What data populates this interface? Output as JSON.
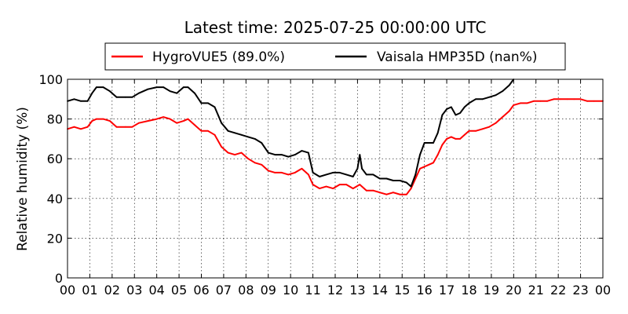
{
  "chart_data": {
    "type": "line",
    "title": "Latest time: 2025-07-25 00:00:00 UTC",
    "xlabel": "",
    "ylabel": "Relative humidity (%)",
    "xlim": [
      0,
      24
    ],
    "ylim": [
      0,
      100
    ],
    "x_ticks": [
      0,
      1,
      2,
      3,
      4,
      5,
      6,
      7,
      8,
      9,
      10,
      11,
      12,
      13,
      14,
      15,
      16,
      17,
      18,
      19,
      20,
      21,
      22,
      23,
      24
    ],
    "x_tick_labels": [
      "00",
      "01",
      "02",
      "03",
      "04",
      "05",
      "06",
      "07",
      "08",
      "09",
      "10",
      "11",
      "12",
      "13",
      "14",
      "15",
      "16",
      "17",
      "18",
      "19",
      "20",
      "21",
      "22",
      "23",
      "00"
    ],
    "y_ticks": [
      0,
      20,
      40,
      60,
      80,
      100
    ],
    "y_tick_labels": [
      "0",
      "20",
      "40",
      "60",
      "80",
      "100"
    ],
    "grid": true,
    "legend_position": "top",
    "series": [
      {
        "name": "HygroVUE5 (89.0%)",
        "color": "#ff0000",
        "x": [
          0,
          0.3,
          0.6,
          0.9,
          1.1,
          1.3,
          1.6,
          1.9,
          2.2,
          2.6,
          2.9,
          3.2,
          3.6,
          4.0,
          4.3,
          4.6,
          4.9,
          5.2,
          5.4,
          5.7,
          6.0,
          6.3,
          6.6,
          6.9,
          7.2,
          7.5,
          7.8,
          8.1,
          8.4,
          8.7,
          9.0,
          9.3,
          9.6,
          9.9,
          10.2,
          10.5,
          10.8,
          11.0,
          11.3,
          11.6,
          11.9,
          12.2,
          12.5,
          12.8,
          13.1,
          13.4,
          13.7,
          14.0,
          14.3,
          14.6,
          14.9,
          15.2,
          15.4,
          15.6,
          15.8,
          16.0,
          16.2,
          16.4,
          16.6,
          16.8,
          17.0,
          17.2,
          17.4,
          17.6,
          17.8,
          18.0,
          18.3,
          18.6,
          18.9,
          19.2,
          19.5,
          19.8,
          20.0,
          20.3,
          20.6,
          20.9,
          21.2,
          21.5,
          21.8,
          22.1,
          22.4,
          22.7,
          23.0,
          23.3,
          23.6,
          24.0
        ],
        "values": [
          75,
          76,
          75,
          76,
          79,
          80,
          80,
          79,
          76,
          76,
          76,
          78,
          79,
          80,
          81,
          80,
          78,
          79,
          80,
          77,
          74,
          74,
          72,
          66,
          63,
          62,
          63,
          60,
          58,
          57,
          54,
          53,
          53,
          52,
          53,
          55,
          52,
          47,
          45,
          46,
          45,
          47,
          47,
          45,
          47,
          44,
          44,
          43,
          42,
          43,
          42,
          42,
          45,
          50,
          55,
          56,
          57,
          58,
          62,
          67,
          70,
          71,
          70,
          70,
          72,
          74,
          74,
          75,
          76,
          78,
          81,
          84,
          87,
          88,
          88,
          89,
          89,
          89,
          90,
          90,
          90,
          90,
          90,
          89,
          89,
          89
        ]
      },
      {
        "name": "Vaisala HMP35D (nan%)",
        "color": "#000000",
        "x": [
          0,
          0.3,
          0.6,
          0.9,
          1.1,
          1.3,
          1.6,
          1.9,
          2.2,
          2.6,
          2.9,
          3.2,
          3.6,
          4.0,
          4.3,
          4.6,
          4.9,
          5.2,
          5.4,
          5.7,
          6.0,
          6.3,
          6.6,
          6.9,
          7.2,
          7.5,
          7.8,
          8.1,
          8.4,
          8.7,
          9.0,
          9.3,
          9.6,
          9.9,
          10.2,
          10.5,
          10.8,
          11.0,
          11.3,
          11.6,
          11.9,
          12.2,
          12.5,
          12.8,
          13.0,
          13.1,
          13.2,
          13.4,
          13.7,
          14.0,
          14.3,
          14.6,
          14.9,
          15.2,
          15.4,
          15.6,
          15.8,
          16.0,
          16.2,
          16.4,
          16.6,
          16.8,
          17.0,
          17.2,
          17.4,
          17.6,
          17.8,
          18.0,
          18.3,
          18.6,
          18.9,
          19.2,
          19.5,
          19.8,
          20.0
        ],
        "values": [
          89,
          90,
          89,
          89,
          93,
          96,
          96,
          94,
          91,
          91,
          91,
          93,
          95,
          96,
          96,
          94,
          93,
          96,
          96,
          93,
          88,
          88,
          86,
          78,
          74,
          73,
          72,
          71,
          70,
          68,
          63,
          62,
          62,
          61,
          62,
          64,
          63,
          53,
          51,
          52,
          53,
          53,
          52,
          51,
          55,
          62,
          55,
          52,
          52,
          50,
          50,
          49,
          49,
          48,
          46,
          52,
          62,
          68,
          68,
          68,
          73,
          82,
          85,
          86,
          82,
          83,
          86,
          88,
          90,
          90,
          91,
          92,
          94,
          97,
          100
        ]
      }
    ]
  }
}
